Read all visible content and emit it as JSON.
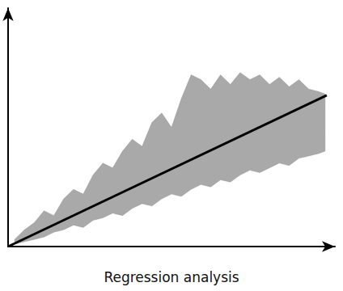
{
  "chart_data": {
    "type": "regression",
    "title": "Regression analysis",
    "xlim": [
      0,
      100
    ],
    "ylim": [
      0,
      100
    ],
    "tick_labels": false,
    "grid": false,
    "x": [
      2,
      5,
      8,
      11,
      14,
      17,
      20,
      23,
      26,
      29,
      32,
      35,
      38,
      41,
      44,
      47,
      50,
      53,
      56,
      59,
      62,
      65,
      68,
      71,
      74,
      77,
      80,
      83,
      86,
      89,
      92,
      95,
      97
    ],
    "upper": [
      3,
      7,
      10,
      15,
      13,
      20,
      24,
      22,
      30,
      35,
      33,
      40,
      45,
      42,
      52,
      56,
      50,
      62,
      72,
      70,
      66,
      72,
      68,
      73,
      70,
      72,
      68,
      71,
      67,
      70,
      66,
      65,
      64
    ],
    "lower": [
      1,
      2,
      3,
      4,
      6,
      7,
      9,
      8,
      11,
      12,
      14,
      13,
      16,
      18,
      17,
      20,
      22,
      21,
      24,
      26,
      25,
      28,
      27,
      30,
      32,
      31,
      33,
      35,
      34,
      37,
      38,
      39,
      40
    ],
    "color": "#8c8c8c",
    "fit_line": {
      "x": [
        0,
        97.5
      ],
      "y": [
        0,
        63.4
      ],
      "color": "#000000"
    }
  }
}
